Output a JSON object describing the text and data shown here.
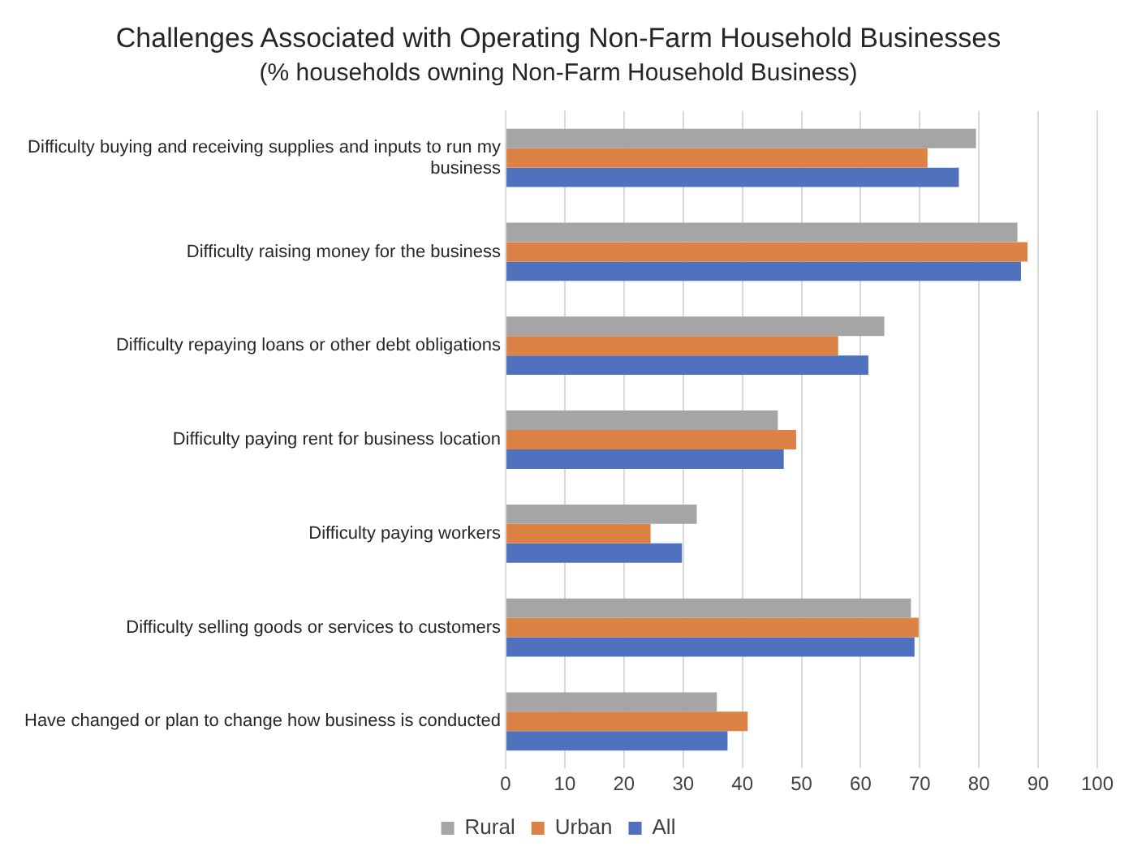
{
  "chart_data": {
    "type": "bar",
    "orientation": "horizontal",
    "title": "Challenges Associated with Operating Non-Farm Household Businesses",
    "subtitle": "(% households owning Non-Farm Household Business)",
    "categories": [
      "Difficulty buying and receiving supplies and inputs to run my business",
      "Difficulty raising money for the business",
      "Difficulty repaying loans or other debt obligations",
      "Difficulty paying rent for business location",
      "Difficulty paying workers",
      "Difficulty selling goods or services to customers",
      "Have changed or plan to change how business is conducted"
    ],
    "series": [
      {
        "name": "Rural",
        "color": "#a5a5a5",
        "values": [
          79.5,
          86.5,
          64.0,
          46.0,
          32.3,
          68.5,
          35.7
        ]
      },
      {
        "name": "Urban",
        "color": "#dd8245",
        "values": [
          71.3,
          88.2,
          56.2,
          49.1,
          24.5,
          69.8,
          40.9
        ]
      },
      {
        "name": "All",
        "color": "#4f71be",
        "values": [
          76.6,
          87.1,
          61.3,
          47.0,
          29.8,
          69.1,
          37.5
        ]
      }
    ],
    "xlim": [
      0,
      100
    ],
    "xticks": [
      0,
      10,
      20,
      30,
      40,
      50,
      60,
      70,
      80,
      90,
      100
    ],
    "grid": "x",
    "legend": "bottom"
  }
}
